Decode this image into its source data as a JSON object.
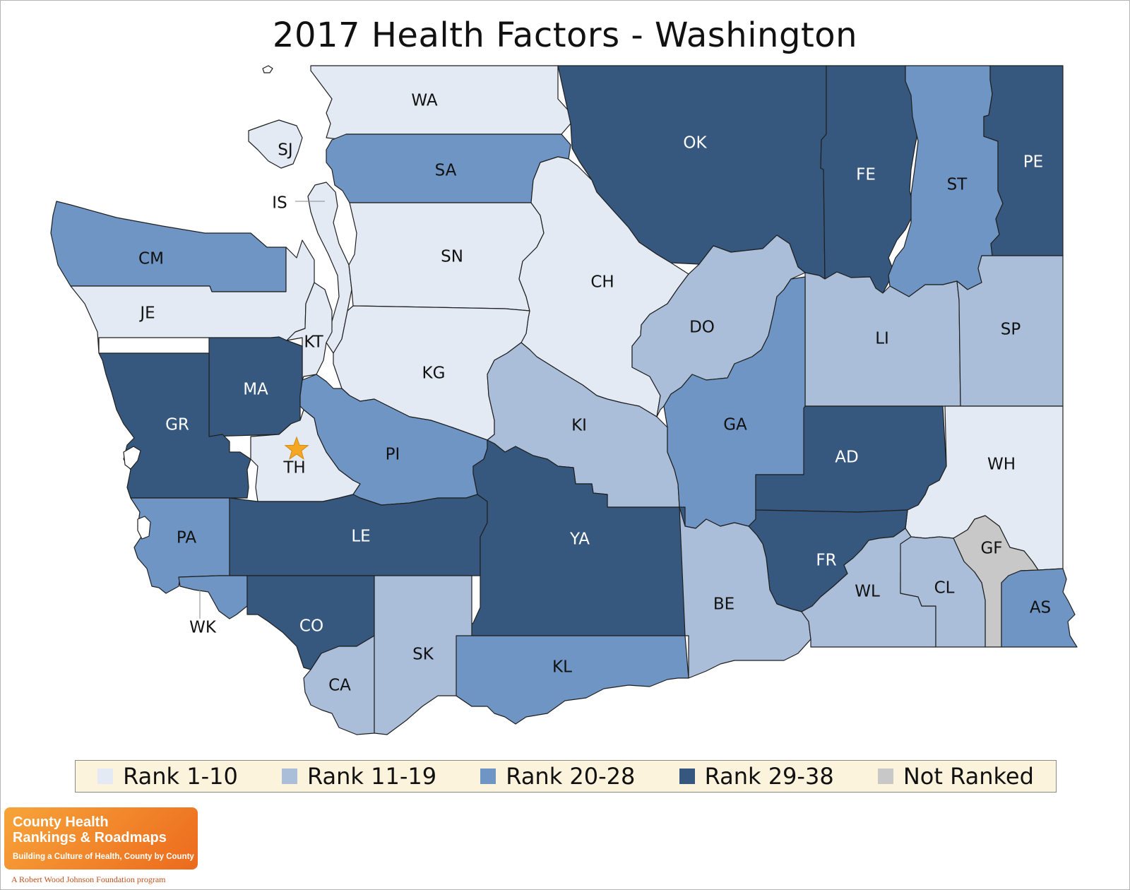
{
  "title": "2017 Health Factors - Washington",
  "colors": {
    "rank_1_10": "#e3eaf4",
    "rank_11_19": "#aabed9",
    "rank_20_28": "#6e95c4",
    "rank_29_38": "#36587f",
    "not_ranked": "#c8c8c8",
    "label_light_bg": "#111111",
    "label_dark_bg": "#ffffff",
    "star": "#f5a623"
  },
  "legend": [
    {
      "label": "Rank 1-10",
      "color": "#e3eaf4"
    },
    {
      "label": "Rank 11-19",
      "color": "#aabed9"
    },
    {
      "label": "Rank 20-28",
      "color": "#6e95c4"
    },
    {
      "label": "Rank 29-38",
      "color": "#36587f"
    },
    {
      "label": "Not Ranked",
      "color": "#c8c8c8"
    }
  ],
  "counties": [
    {
      "abbr": "WA",
      "category": "Rank 1-10"
    },
    {
      "abbr": "SJ",
      "category": "Rank 1-10"
    },
    {
      "abbr": "IS",
      "category": "Rank 1-10"
    },
    {
      "abbr": "SA",
      "category": "Rank 20-28"
    },
    {
      "abbr": "OK",
      "category": "Rank 29-38"
    },
    {
      "abbr": "FE",
      "category": "Rank 29-38"
    },
    {
      "abbr": "ST",
      "category": "Rank 20-28"
    },
    {
      "abbr": "PE",
      "category": "Rank 29-38"
    },
    {
      "abbr": "CM",
      "category": "Rank 20-28"
    },
    {
      "abbr": "JE",
      "category": "Rank 1-10"
    },
    {
      "abbr": "SN",
      "category": "Rank 1-10"
    },
    {
      "abbr": "CH",
      "category": "Rank 1-10"
    },
    {
      "abbr": "KT",
      "category": "Rank 1-10"
    },
    {
      "abbr": "KG",
      "category": "Rank 1-10"
    },
    {
      "abbr": "DO",
      "category": "Rank 11-19"
    },
    {
      "abbr": "LI",
      "category": "Rank 11-19"
    },
    {
      "abbr": "SP",
      "category": "Rank 11-19"
    },
    {
      "abbr": "MA",
      "category": "Rank 29-38"
    },
    {
      "abbr": "GR",
      "category": "Rank 29-38"
    },
    {
      "abbr": "TH",
      "category": "Rank 1-10"
    },
    {
      "abbr": "PI",
      "category": "Rank 20-28"
    },
    {
      "abbr": "KI",
      "category": "Rank 11-19"
    },
    {
      "abbr": "GA",
      "category": "Rank 20-28"
    },
    {
      "abbr": "AD",
      "category": "Rank 29-38"
    },
    {
      "abbr": "WH",
      "category": "Rank 1-10"
    },
    {
      "abbr": "PA",
      "category": "Rank 20-28"
    },
    {
      "abbr": "LE",
      "category": "Rank 29-38"
    },
    {
      "abbr": "YA",
      "category": "Rank 29-38"
    },
    {
      "abbr": "FR",
      "category": "Rank 29-38"
    },
    {
      "abbr": "GF",
      "category": "Not Ranked"
    },
    {
      "abbr": "BE",
      "category": "Rank 11-19"
    },
    {
      "abbr": "WL",
      "category": "Rank 11-19"
    },
    {
      "abbr": "CL",
      "category": "Rank 11-19"
    },
    {
      "abbr": "AS",
      "category": "Rank 20-28"
    },
    {
      "abbr": "WK",
      "category": "Rank 20-28"
    },
    {
      "abbr": "CO",
      "category": "Rank 29-38"
    },
    {
      "abbr": "CA",
      "category": "Rank 11-19"
    },
    {
      "abbr": "SK",
      "category": "Rank 11-19"
    },
    {
      "abbr": "KL",
      "category": "Rank 20-28"
    }
  ],
  "state_capital_county": "TH",
  "logo": {
    "line1": "County Health",
    "line2": "Rankings & Roadmaps",
    "tagline": "Building a Culture of Health, County by County",
    "program": "A Robert Wood Johnson Foundation program"
  }
}
